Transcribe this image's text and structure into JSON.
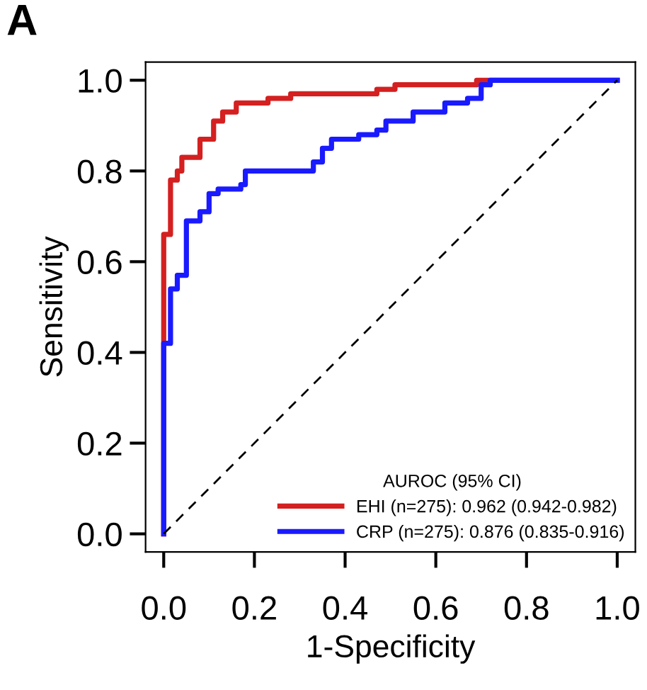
{
  "chart_data": {
    "type": "line",
    "title": "A",
    "xlabel": "1-Specificity",
    "ylabel": "Sensitivity",
    "legend_title": "AUROC (95% CI)",
    "legend": "bottom right",
    "grid": false,
    "xlim": [
      -0.04,
      1.04
    ],
    "ylim": [
      -0.04,
      1.04
    ],
    "xticks": [
      {
        "value": 0,
        "label": "0.0"
      },
      {
        "value": 0.2,
        "label": "0.2"
      },
      {
        "value": 0.4,
        "label": "0.4"
      },
      {
        "value": 0.6,
        "label": "0.6"
      },
      {
        "value": 0.8,
        "label": "0.8"
      },
      {
        "value": 1,
        "label": "1.0"
      }
    ],
    "yticks": [
      {
        "value": 0,
        "label": "0.0"
      },
      {
        "value": 0.2,
        "label": "0.2"
      },
      {
        "value": 0.4,
        "label": "0.4"
      },
      {
        "value": 0.6,
        "label": "0.6"
      },
      {
        "value": 0.8,
        "label": "0.8"
      },
      {
        "value": 1,
        "label": "1.0"
      }
    ],
    "series": [
      {
        "name": "EHI (n=275): 0.962 (0.942-0.982)",
        "color": "#d42020",
        "x": [
          0,
          0,
          0.015,
          0.015,
          0.03,
          0.03,
          0.04,
          0.04,
          0.08,
          0.08,
          0.11,
          0.11,
          0.13,
          0.13,
          0.16,
          0.16,
          0.23,
          0.23,
          0.28,
          0.28,
          0.47,
          0.47,
          0.51,
          0.51,
          0.69,
          0.69,
          1
        ],
        "values": [
          0,
          0.66,
          0.66,
          0.78,
          0.78,
          0.8,
          0.8,
          0.83,
          0.83,
          0.87,
          0.87,
          0.91,
          0.91,
          0.93,
          0.93,
          0.95,
          0.95,
          0.96,
          0.96,
          0.97,
          0.97,
          0.98,
          0.98,
          0.99,
          0.99,
          1,
          1
        ]
      },
      {
        "name": "CRP (n=275): 0.876 (0.835-0.916)",
        "color": "#1a1aff",
        "x": [
          0,
          0,
          0.015,
          0.015,
          0.03,
          0.03,
          0.05,
          0.05,
          0.08,
          0.08,
          0.1,
          0.1,
          0.12,
          0.12,
          0.17,
          0.17,
          0.18,
          0.18,
          0.33,
          0.33,
          0.35,
          0.35,
          0.37,
          0.37,
          0.43,
          0.43,
          0.47,
          0.47,
          0.49,
          0.49,
          0.55,
          0.55,
          0.62,
          0.62,
          0.67,
          0.67,
          0.7,
          0.7,
          0.72,
          0.72,
          1
        ],
        "values": [
          0,
          0.42,
          0.42,
          0.54,
          0.54,
          0.57,
          0.57,
          0.69,
          0.69,
          0.71,
          0.71,
          0.75,
          0.75,
          0.76,
          0.76,
          0.77,
          0.77,
          0.8,
          0.8,
          0.82,
          0.82,
          0.85,
          0.85,
          0.87,
          0.87,
          0.88,
          0.88,
          0.89,
          0.89,
          0.91,
          0.91,
          0.93,
          0.93,
          0.95,
          0.95,
          0.96,
          0.96,
          0.99,
          0.99,
          1,
          1
        ]
      },
      {
        "color": "#000000",
        "line_style": "dashed",
        "x": [
          0,
          1
        ],
        "values": [
          0,
          1
        ]
      }
    ]
  }
}
